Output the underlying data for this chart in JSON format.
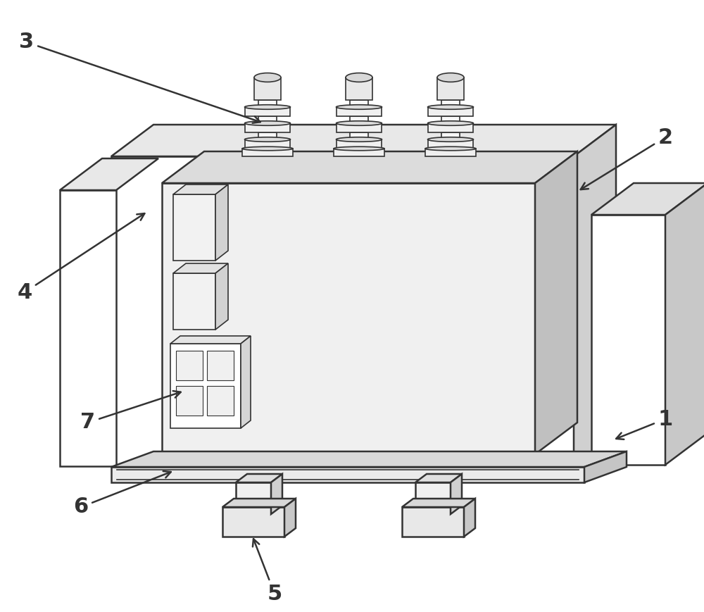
{
  "bg_color": "#ffffff",
  "line_color": "#333333",
  "lw_main": 1.8,
  "lw_thin": 1.2,
  "lw_thick": 2.0,
  "dx3d": 60,
  "dy3d": 45,
  "label_fontsize": 22
}
